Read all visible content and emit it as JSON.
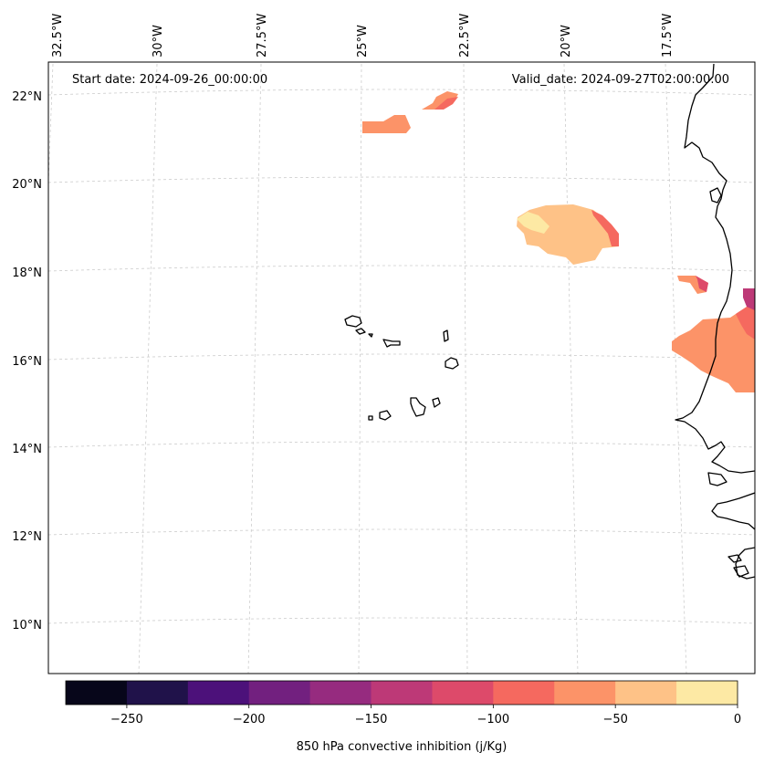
{
  "map": {
    "start_date": "Start date: 2024-09-26_00:00:00",
    "valid_date": "Valid_date: 2024-09-27T02:00:00.00",
    "lon_labels": [
      "32.5°W",
      "30°W",
      "27.5°W",
      "25°W",
      "22.5°W",
      "20°W",
      "17.5°W"
    ],
    "lat_labels": [
      "22°N",
      "20°N",
      "18°N",
      "16°N",
      "14°N",
      "12°N",
      "10°N"
    ],
    "field_name": "850 hPa convective inhibition",
    "field_units": "j/Kg"
  },
  "colorbar": {
    "label": "850 hPa convective inhibition (j/Kg)",
    "ticks": [
      "−250",
      "−200",
      "−150",
      "−100",
      "−50",
      "0"
    ],
    "levels": [
      -275,
      -250,
      -225,
      -200,
      -175,
      -150,
      -125,
      -100,
      -75,
      -50,
      -25,
      0
    ],
    "colors": [
      "#07061a",
      "#20124a",
      "#4c117a",
      "#72207f",
      "#962b7f",
      "#bd3977",
      "#dd4a6a",
      "#f5695f",
      "#fc9368",
      "#fec287",
      "#fde9a4"
    ]
  },
  "colors": {
    "coastline": "#000000",
    "gridline": "#cccccc"
  }
}
